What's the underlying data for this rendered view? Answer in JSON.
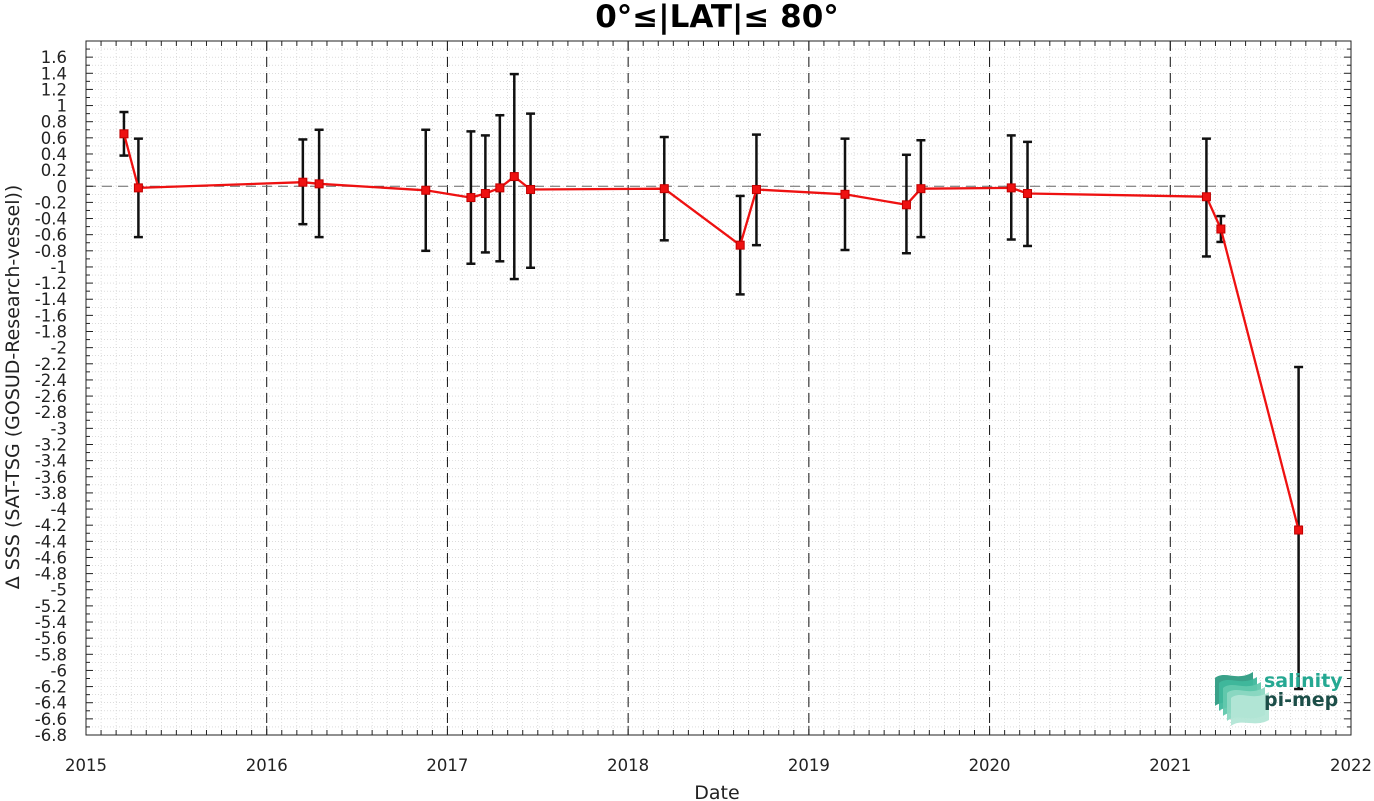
{
  "chart_data": {
    "type": "line",
    "title": "0°≤|LAT|≤ 80°",
    "xlabel": "Date",
    "ylabel": "Δ SSS (SAT-TSG (GOSUD-Research-vessel))",
    "xlim": [
      2015,
      2022
    ],
    "ylim": [
      -6.8,
      1.8
    ],
    "xticks": [
      "2015",
      "2016",
      "2017",
      "2018",
      "2019",
      "2020",
      "2021",
      "2022"
    ],
    "yticks": [
      "1.6",
      "1.4",
      "1.2",
      "1",
      "0.8",
      "0.6",
      "0.4",
      "0.2",
      "0",
      "-0.2",
      "-0.4",
      "-0.6",
      "-0.8",
      "-1",
      "-1.2",
      "-1.4",
      "-1.6",
      "-1.8",
      "-2",
      "-2.2",
      "-2.4",
      "-2.6",
      "-2.8",
      "-3",
      "-3.2",
      "-3.4",
      "-3.6",
      "-3.8",
      "-4",
      "-4.2",
      "-4.4",
      "-4.6",
      "-4.8",
      "-5",
      "-5.2",
      "-5.4",
      "-5.6",
      "-5.8",
      "-6",
      "-6.2",
      "-6.4",
      "-6.6",
      "-6.8"
    ],
    "grid": true,
    "year_divider_lines": "dashed",
    "zero_reference_line": "dashed",
    "colors": {
      "line": "#ee1111",
      "marker": "#ee1111",
      "errorbar": "#111111",
      "grid": "#c8c8c8"
    },
    "series": [
      {
        "x": [
          2015.21,
          2015.29,
          2016.2,
          2016.29,
          2016.88,
          2017.13,
          2017.21,
          2017.29,
          2017.37,
          2017.46,
          2018.2,
          2018.62,
          2018.71,
          2019.2,
          2019.54,
          2019.62,
          2020.12,
          2020.21,
          2021.2,
          2021.28,
          2021.71
        ],
        "y": [
          0.65,
          -0.02,
          0.05,
          0.03,
          -0.05,
          -0.14,
          -0.09,
          -0.02,
          0.12,
          -0.04,
          -0.03,
          -0.73,
          -0.04,
          -0.1,
          -0.23,
          -0.03,
          -0.02,
          -0.09,
          -0.13,
          -0.53,
          -4.26
        ],
        "err_low": [
          0.38,
          -0.63,
          -0.47,
          -0.63,
          -0.8,
          -0.96,
          -0.82,
          -0.93,
          -1.15,
          -1.01,
          -0.67,
          -1.34,
          -0.73,
          -0.79,
          -0.83,
          -0.63,
          -0.66,
          -0.74,
          -0.87,
          -0.69,
          -6.23
        ],
        "err_high": [
          0.92,
          0.59,
          0.58,
          0.7,
          0.7,
          0.68,
          0.63,
          0.88,
          1.39,
          0.9,
          0.61,
          -0.12,
          0.64,
          0.59,
          0.39,
          0.57,
          0.63,
          0.55,
          0.59,
          -0.37,
          -2.24
        ]
      }
    ]
  },
  "logo": {
    "line1": "salinity",
    "line2": "pi-mep",
    "color1": "#25a892",
    "color2": "#1c4e48",
    "wave_colors": [
      "#2f9c83",
      "#3fb89c",
      "#62c8ad",
      "#8cd8c2",
      "#b3e6d6"
    ]
  }
}
